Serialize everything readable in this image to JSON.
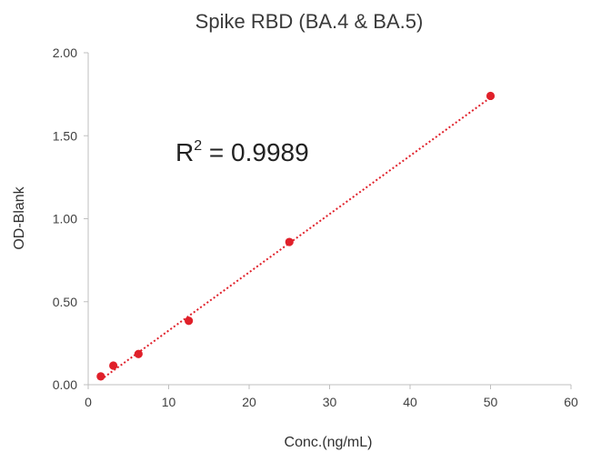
{
  "chart_data": {
    "type": "scatter",
    "title": "Spike RBD (BA.4 & BA.5)",
    "xlabel": "Conc.(ng/mL)",
    "ylabel": "OD-Blank",
    "xlim": [
      0,
      60
    ],
    "ylim": [
      0,
      2.0
    ],
    "x_ticks": [
      "0",
      "10",
      "20",
      "30",
      "40",
      "50",
      "60"
    ],
    "y_ticks": [
      "0.00",
      "0.50",
      "1.00",
      "1.50",
      "2.00"
    ],
    "series": [
      {
        "x": [
          1.5625,
          3.125,
          6.25,
          12.5,
          25,
          50
        ],
        "y": [
          0.05,
          0.115,
          0.185,
          0.385,
          0.86,
          1.74
        ]
      }
    ],
    "trendline": {
      "type": "linear",
      "x": [
        1.5625,
        50
      ],
      "y": [
        0.03,
        1.73
      ]
    },
    "annotation": {
      "text_main": "R",
      "text_sup": "2",
      "text_rest": " = 0.9989"
    },
    "grid": false,
    "legend": "none",
    "colors": {
      "points": "#e0202a",
      "trendline": "#e0202a",
      "axis": "#bfbfbf"
    }
  }
}
